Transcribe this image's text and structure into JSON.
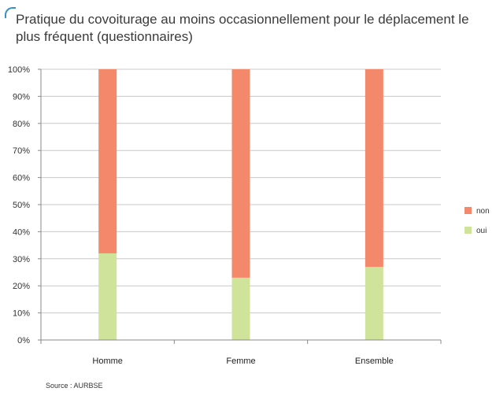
{
  "title": "Pratique du covoiturage au moins occasionnellement pour le déplacement le plus fréquent (questionnaires)",
  "source": "Source : AURBSE",
  "colors": {
    "non": "#f4886a",
    "oui": "#cfe39a",
    "grid": "#c8c8c8",
    "axis": "#8a8a8a",
    "accent": "#3b8fc9"
  },
  "chart_data": {
    "type": "bar",
    "stacked": true,
    "title": "Pratique du covoiturage au moins occasionnellement pour le déplacement le plus fréquent (questionnaires)",
    "categories": [
      "Homme",
      "Femme",
      "Ensemble"
    ],
    "series": [
      {
        "name": "oui",
        "values": [
          32,
          23,
          27
        ]
      },
      {
        "name": "non",
        "values": [
          68,
          77,
          73
        ]
      }
    ],
    "ylim": [
      0,
      100
    ],
    "yticks": [
      "0%",
      "10%",
      "20%",
      "30%",
      "40%",
      "50%",
      "60%",
      "70%",
      "80%",
      "90%",
      "100%"
    ],
    "grid": true,
    "legend_position": "right",
    "legend": [
      "non",
      "oui"
    ]
  }
}
